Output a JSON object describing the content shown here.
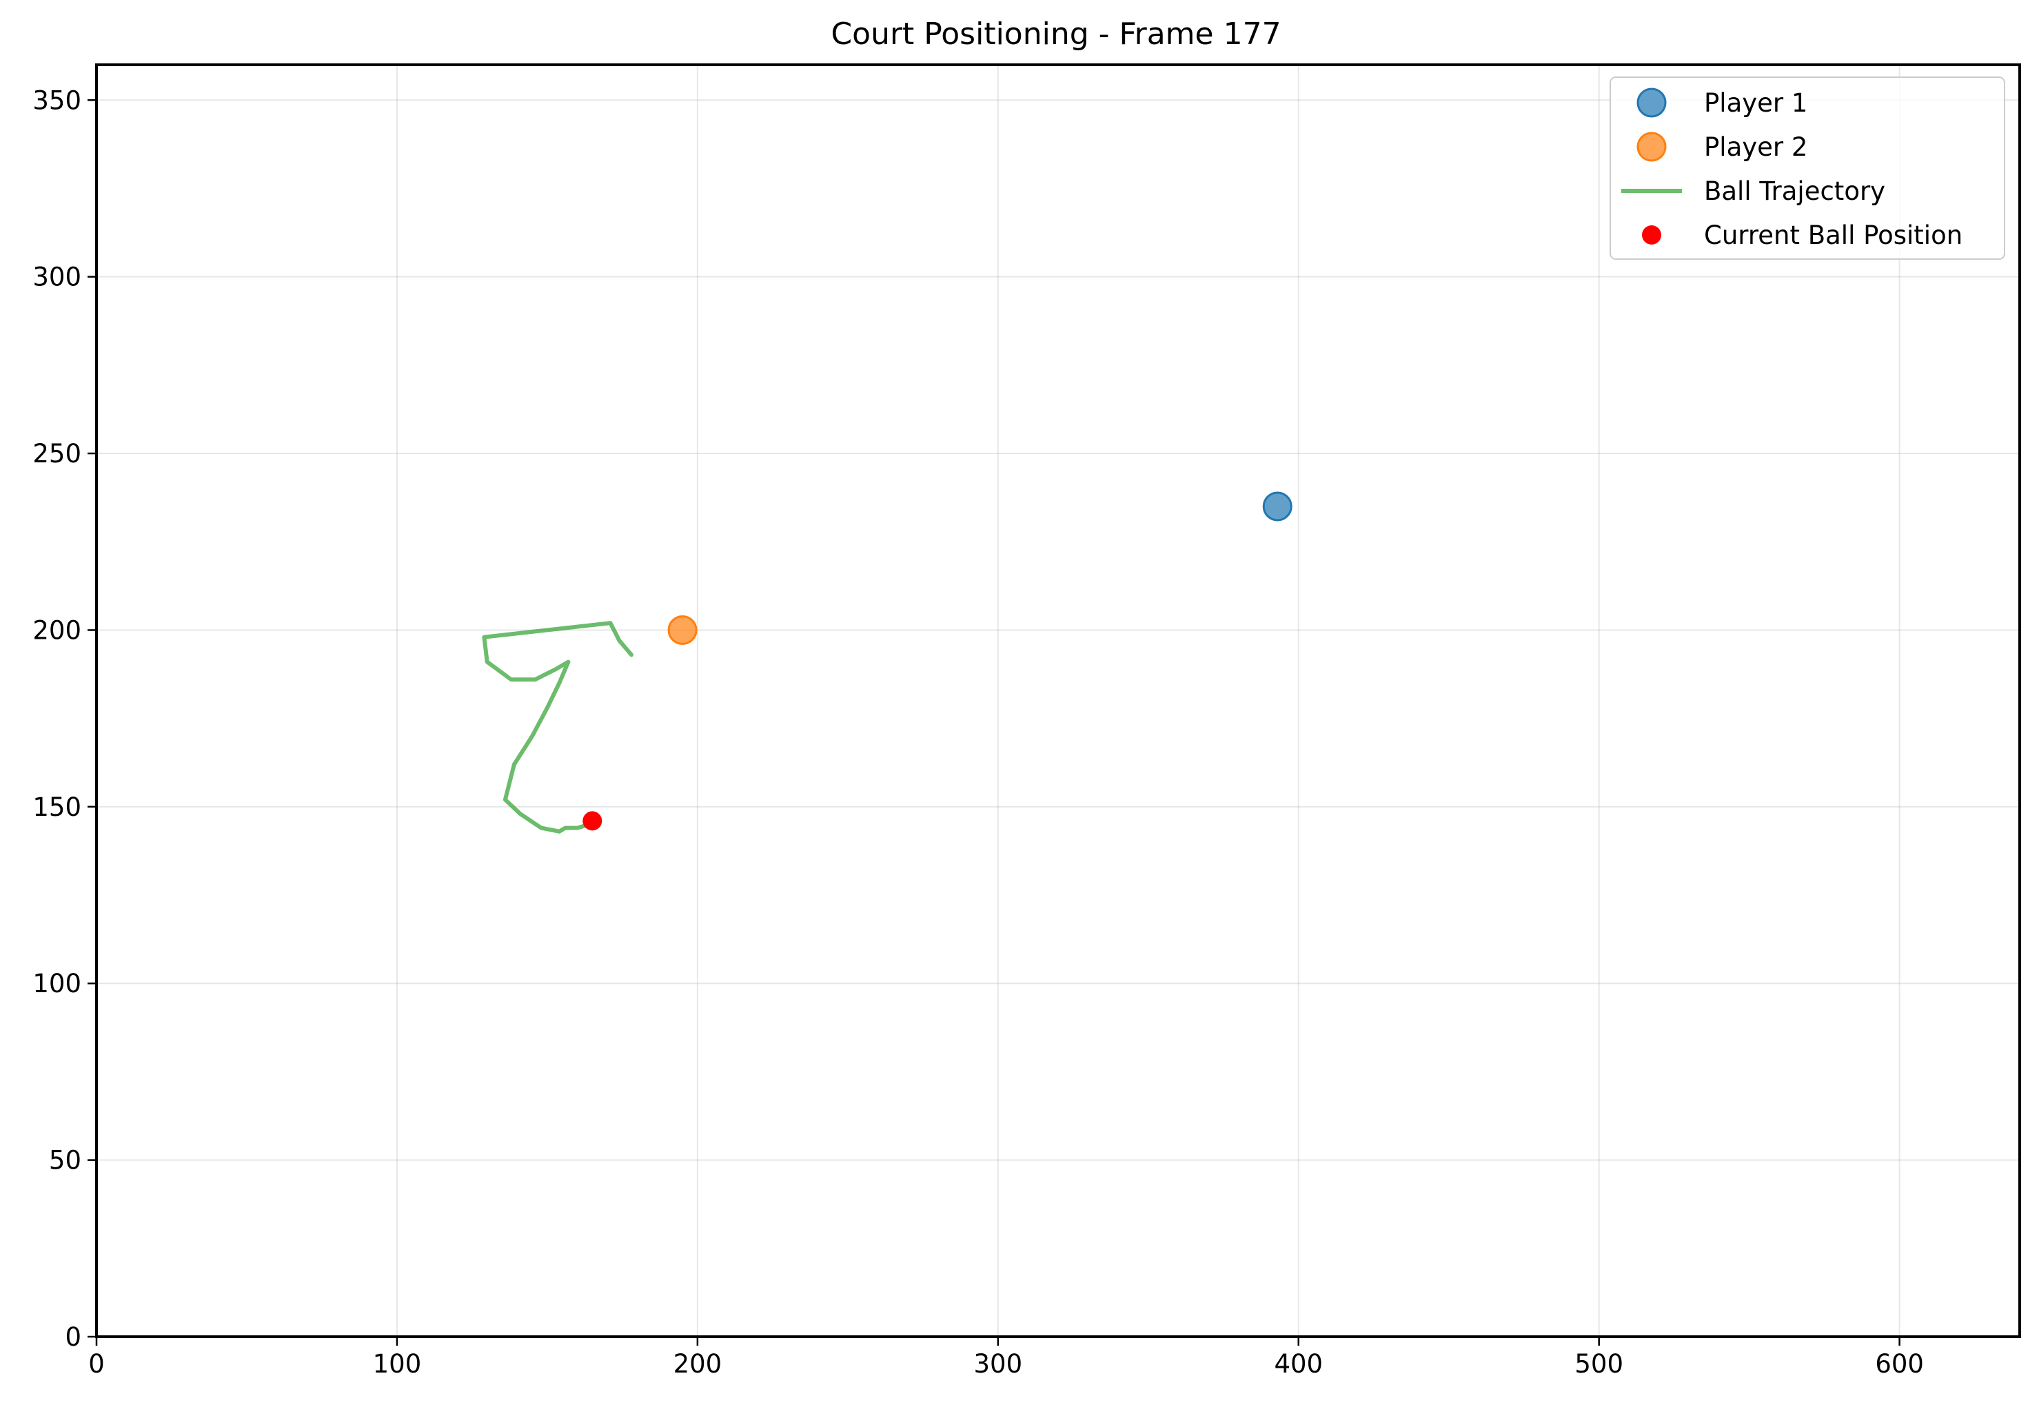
{
  "chart_data": {
    "type": "scatter",
    "title": "Court Positioning - Frame 177",
    "xlabel": "",
    "ylabel": "",
    "xlim": [
      0,
      640
    ],
    "ylim": [
      0,
      360
    ],
    "xticks": [
      0,
      100,
      200,
      300,
      400,
      500,
      600
    ],
    "yticks": [
      0,
      50,
      100,
      150,
      200,
      250,
      300,
      350
    ],
    "grid": true,
    "legend_position": "top-right",
    "series": [
      {
        "name": "Player 1",
        "kind": "scatter",
        "color": "#1f77b4",
        "points": [
          [
            393,
            235
          ]
        ]
      },
      {
        "name": "Player 2",
        "kind": "scatter",
        "color": "#ff7f0e",
        "points": [
          [
            195,
            200
          ]
        ]
      },
      {
        "name": "Ball Trajectory",
        "kind": "line",
        "color": "#2ca02c",
        "points": [
          [
            178,
            193
          ],
          [
            174,
            197
          ],
          [
            171,
            202
          ],
          [
            129,
            198
          ],
          [
            130,
            191
          ],
          [
            138,
            186
          ],
          [
            146,
            186
          ],
          [
            153,
            189
          ],
          [
            157,
            191
          ],
          [
            154,
            185
          ],
          [
            150,
            178
          ],
          [
            145,
            170
          ],
          [
            139,
            162
          ],
          [
            136,
            152
          ],
          [
            141,
            148
          ],
          [
            148,
            144
          ],
          [
            154,
            143
          ],
          [
            156,
            144
          ],
          [
            160,
            144
          ],
          [
            164,
            145
          ]
        ]
      },
      {
        "name": "Current Ball Position",
        "kind": "scatter",
        "color": "#ff0000",
        "points": [
          [
            165,
            146
          ]
        ]
      }
    ]
  }
}
